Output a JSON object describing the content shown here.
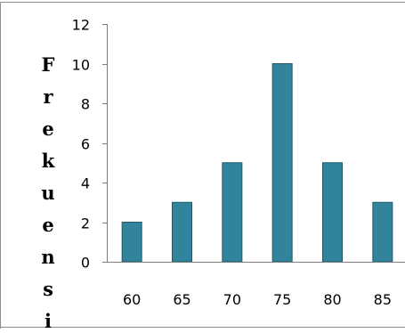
{
  "chart_data": {
    "type": "bar",
    "categories": [
      "60",
      "65",
      "70",
      "75",
      "80",
      "85"
    ],
    "values": [
      2,
      3,
      5,
      10,
      5,
      3
    ],
    "title": "",
    "xlabel": "",
    "ylabel": "Frekuensi",
    "ylim": [
      0,
      12
    ],
    "yticks": [
      "0",
      "2",
      "4",
      "6",
      "8",
      "10",
      "12"
    ],
    "grid": false,
    "bar_color": "#31849b",
    "bar_edge_color": "#215968"
  }
}
